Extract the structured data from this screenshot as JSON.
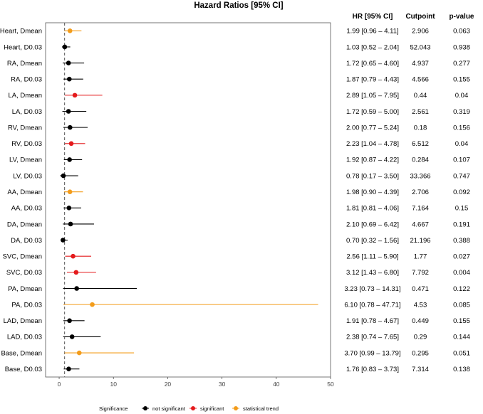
{
  "chart_data": {
    "type": "forest",
    "title": "Hazard Ratios [95% CI]",
    "columns": {
      "hr": "HR [95% CI]",
      "cutpoint": "Cutpoint",
      "pvalue": "p-value"
    },
    "xlim": [
      -2.5,
      50
    ],
    "xticks": [
      0,
      10,
      20,
      30,
      40,
      50
    ],
    "reference_line": 1,
    "grid": false,
    "legend": {
      "title": "Significance",
      "placement": "bottom-center",
      "items": [
        {
          "key": "ns",
          "label": "not significant",
          "color": "#000000"
        },
        {
          "key": "sig",
          "label": "significant",
          "color": "#e41a1c"
        },
        {
          "key": "trend",
          "label": "statistical trend",
          "color": "#f39c1a"
        }
      ]
    },
    "rows": [
      {
        "label": "Heart, Dmean",
        "hr": 1.99,
        "lo": 0.96,
        "hi": 4.11,
        "hr_text": "1.99 [0.96 – 4.11]",
        "cutpoint": "2.906",
        "p": "0.063",
        "sig": "trend"
      },
      {
        "label": "Heart, D0.03",
        "hr": 1.03,
        "lo": 0.52,
        "hi": 2.04,
        "hr_text": "1.03 [0.52 – 2.04]",
        "cutpoint": "52.043",
        "p": "0.938",
        "sig": "ns"
      },
      {
        "label": "RA, Dmean",
        "hr": 1.72,
        "lo": 0.65,
        "hi": 4.6,
        "hr_text": "1.72 [0.65 – 4.60]",
        "cutpoint": "4.937",
        "p": "0.277",
        "sig": "ns"
      },
      {
        "label": "RA, D0.03",
        "hr": 1.87,
        "lo": 0.79,
        "hi": 4.43,
        "hr_text": "1.87 [0.79 – 4.43]",
        "cutpoint": "4.566",
        "p": "0.155",
        "sig": "ns"
      },
      {
        "label": "LA, Dmean",
        "hr": 2.89,
        "lo": 1.05,
        "hi": 7.95,
        "hr_text": "2.89 [1.05 – 7.95]",
        "cutpoint": "0.44",
        "p": "0.04",
        "sig": "sig"
      },
      {
        "label": "LA, D0.03",
        "hr": 1.72,
        "lo": 0.59,
        "hi": 5.0,
        "hr_text": "1.72 [0.59 – 5.00]",
        "cutpoint": "2.561",
        "p": "0.319",
        "sig": "ns"
      },
      {
        "label": "RV, Dmean",
        "hr": 2.0,
        "lo": 0.77,
        "hi": 5.24,
        "hr_text": "2.00 [0.77 – 5.24]",
        "cutpoint": "0.18",
        "p": "0.156",
        "sig": "ns"
      },
      {
        "label": "RV, D0.03",
        "hr": 2.23,
        "lo": 1.04,
        "hi": 4.78,
        "hr_text": "2.23 [1.04 – 4.78]",
        "cutpoint": "6.512",
        "p": "0.04",
        "sig": "sig"
      },
      {
        "label": "LV, Dmean",
        "hr": 1.92,
        "lo": 0.87,
        "hi": 4.22,
        "hr_text": "1.92 [0.87 – 4.22]",
        "cutpoint": "0.284",
        "p": "0.107",
        "sig": "ns"
      },
      {
        "label": "LV, D0.03",
        "hr": 0.78,
        "lo": 0.17,
        "hi": 3.5,
        "hr_text": "0.78 [0.17 – 3.50]",
        "cutpoint": "33.366",
        "p": "0.747",
        "sig": "ns"
      },
      {
        "label": "AA, Dmean",
        "hr": 1.98,
        "lo": 0.9,
        "hi": 4.39,
        "hr_text": "1.98 [0.90 – 4.39]",
        "cutpoint": "2.706",
        "p": "0.092",
        "sig": "trend"
      },
      {
        "label": "AA, D0.03",
        "hr": 1.81,
        "lo": 0.81,
        "hi": 4.06,
        "hr_text": "1.81 [0.81 – 4.06]",
        "cutpoint": "7.164",
        "p": "0.15",
        "sig": "ns"
      },
      {
        "label": "DA, Dmean",
        "hr": 2.1,
        "lo": 0.69,
        "hi": 6.42,
        "hr_text": "2.10 [0.69 – 6.42]",
        "cutpoint": "4.667",
        "p": "0.191",
        "sig": "ns"
      },
      {
        "label": "DA, D0.03",
        "hr": 0.7,
        "lo": 0.32,
        "hi": 1.56,
        "hr_text": "0.70 [0.32 – 1.56]",
        "cutpoint": "21.196",
        "p": "0.388",
        "sig": "ns"
      },
      {
        "label": "SVC, Dmean",
        "hr": 2.56,
        "lo": 1.11,
        "hi": 5.9,
        "hr_text": "2.56 [1.11 – 5.90]",
        "cutpoint": "1.77",
        "p": "0.027",
        "sig": "sig"
      },
      {
        "label": "SVC, D0.03",
        "hr": 3.12,
        "lo": 1.43,
        "hi": 6.8,
        "hr_text": "3.12 [1.43 – 6.80]",
        "cutpoint": "7.792",
        "p": "0.004",
        "sig": "sig"
      },
      {
        "label": "PA, Dmean",
        "hr": 3.23,
        "lo": 0.73,
        "hi": 14.31,
        "hr_text": "3.23 [0.73 – 14.31]",
        "cutpoint": "0.471",
        "p": "0.122",
        "sig": "ns"
      },
      {
        "label": "PA, D0.03",
        "hr": 6.1,
        "lo": 0.78,
        "hi": 47.71,
        "hr_text": "6.10 [0.78 – 47.71]",
        "cutpoint": "4.53",
        "p": "0.085",
        "sig": "trend"
      },
      {
        "label": "LAD, Dmean",
        "hr": 1.91,
        "lo": 0.78,
        "hi": 4.67,
        "hr_text": "1.91 [0.78 – 4.67]",
        "cutpoint": "0.449",
        "p": "0.155",
        "sig": "ns"
      },
      {
        "label": "LAD, D0.03",
        "hr": 2.38,
        "lo": 0.74,
        "hi": 7.65,
        "hr_text": "2.38 [0.74 – 7.65]",
        "cutpoint": "0.29",
        "p": "0.144",
        "sig": "ns"
      },
      {
        "label": "Base, Dmean",
        "hr": 3.7,
        "lo": 0.99,
        "hi": 13.79,
        "hr_text": "3.70 [0.99 – 13.79]",
        "cutpoint": "0.295",
        "p": "0.051",
        "sig": "trend"
      },
      {
        "label": "Base, D0.03",
        "hr": 1.76,
        "lo": 0.83,
        "hi": 3.73,
        "hr_text": "1.76 [0.83 – 3.73]",
        "cutpoint": "7.314",
        "p": "0.138",
        "sig": "ns"
      }
    ]
  }
}
